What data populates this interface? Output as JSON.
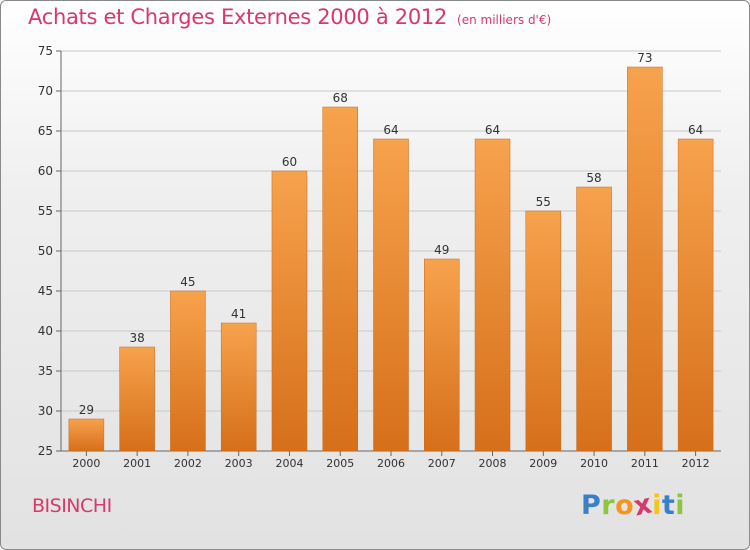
{
  "header": {
    "title": "Achats et Charges Externes 2000 à 2012",
    "subtitle": "(en milliers d'€)"
  },
  "footer": {
    "commune": "BISINCHI",
    "brand_letters": [
      "P",
      "r",
      "o",
      "x",
      "i",
      "t",
      "i"
    ],
    "brand_colors": [
      "#3a7fc8",
      "#8cc63f",
      "#f7941d",
      "#d8386b",
      "#f7c31d",
      "#3a7fc8",
      "#8cc63f"
    ]
  },
  "chart_data": {
    "type": "bar",
    "categories": [
      "2000",
      "2001",
      "2002",
      "2003",
      "2004",
      "2005",
      "2006",
      "2007",
      "2008",
      "2009",
      "2010",
      "2011",
      "2012"
    ],
    "values": [
      29,
      38,
      45,
      41,
      60,
      68,
      64,
      49,
      64,
      55,
      58,
      73,
      64
    ],
    "ylim": [
      25,
      75
    ],
    "yticks": [
      25,
      30,
      35,
      40,
      45,
      50,
      55,
      60,
      65,
      70,
      75
    ],
    "grid": true,
    "bar_color_top": "#f7a24d",
    "bar_color_bottom": "#d66f1a",
    "title_color": "#d8386b"
  }
}
